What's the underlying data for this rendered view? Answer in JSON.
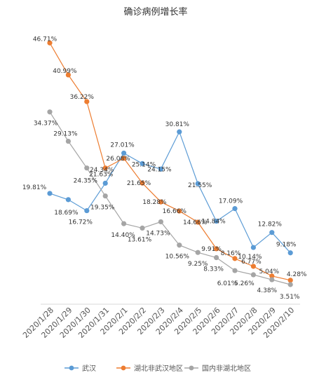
{
  "chart_data": {
    "type": "line",
    "title": "确诊病例增长率",
    "xlabel": "",
    "ylabel": "",
    "ylim": [
      0,
      50
    ],
    "grid": false,
    "legend_position": "bottom",
    "categories": [
      "2020/1/28",
      "2020/1/29",
      "2020/1/30",
      "2020/1/31",
      "2020/2/1",
      "2020/2/2",
      "2020/2/3",
      "2020/2/4",
      "2020/2/5",
      "2020/2/6",
      "2020/2/7",
      "2020/2/8",
      "2020/2/9",
      "2020/2/10"
    ],
    "series": [
      {
        "name": "武汉",
        "color": "#5B9BD5",
        "values": [
          19.81,
          18.69,
          16.72,
          21.63,
          27.01,
          25.14,
          24.15,
          30.81,
          21.55,
          14.84,
          17.09,
          10.14,
          12.82,
          9.18
        ],
        "labels": [
          "19.81%",
          "18.69%",
          "16.72%",
          "21.63%",
          "27.01%",
          "25.14%",
          "24.15%",
          "30.81%",
          "21.55%",
          "14.84%",
          "17.09%",
          "10.14%",
          "12.82%",
          "9.18%"
        ]
      },
      {
        "name": "湖北非武汉地区",
        "color": "#ED7D31",
        "values": [
          46.71,
          40.99,
          36.22,
          24.34,
          26.08,
          21.65,
          18.28,
          16.66,
          14.66,
          9.91,
          8.16,
          6.77,
          5.04,
          4.28
        ],
        "labels": [
          "46.71%",
          "40.99%",
          "36.22%",
          "24.34%",
          "26.08%",
          "21.65%",
          "18.28%",
          "16.66%",
          "14.66%",
          "9.91%",
          "8.16%",
          "6.77%",
          "5.04%",
          "4.28%"
        ]
      },
      {
        "name": "国内非湖北地区",
        "color": "#A5A5A5",
        "values": [
          34.37,
          29.13,
          24.35,
          19.35,
          14.4,
          13.61,
          14.73,
          10.56,
          9.25,
          8.33,
          6.01,
          5.26,
          4.38,
          3.51
        ],
        "labels": [
          "34.37%",
          "29.13%",
          "24.35%",
          "19.35%",
          "14.40%",
          "13.61%",
          "14.73%",
          "10.56%",
          "9.25%",
          "8.33%",
          "6.01%",
          "5.26%",
          "4.38%",
          "3.51%"
        ]
      }
    ]
  }
}
